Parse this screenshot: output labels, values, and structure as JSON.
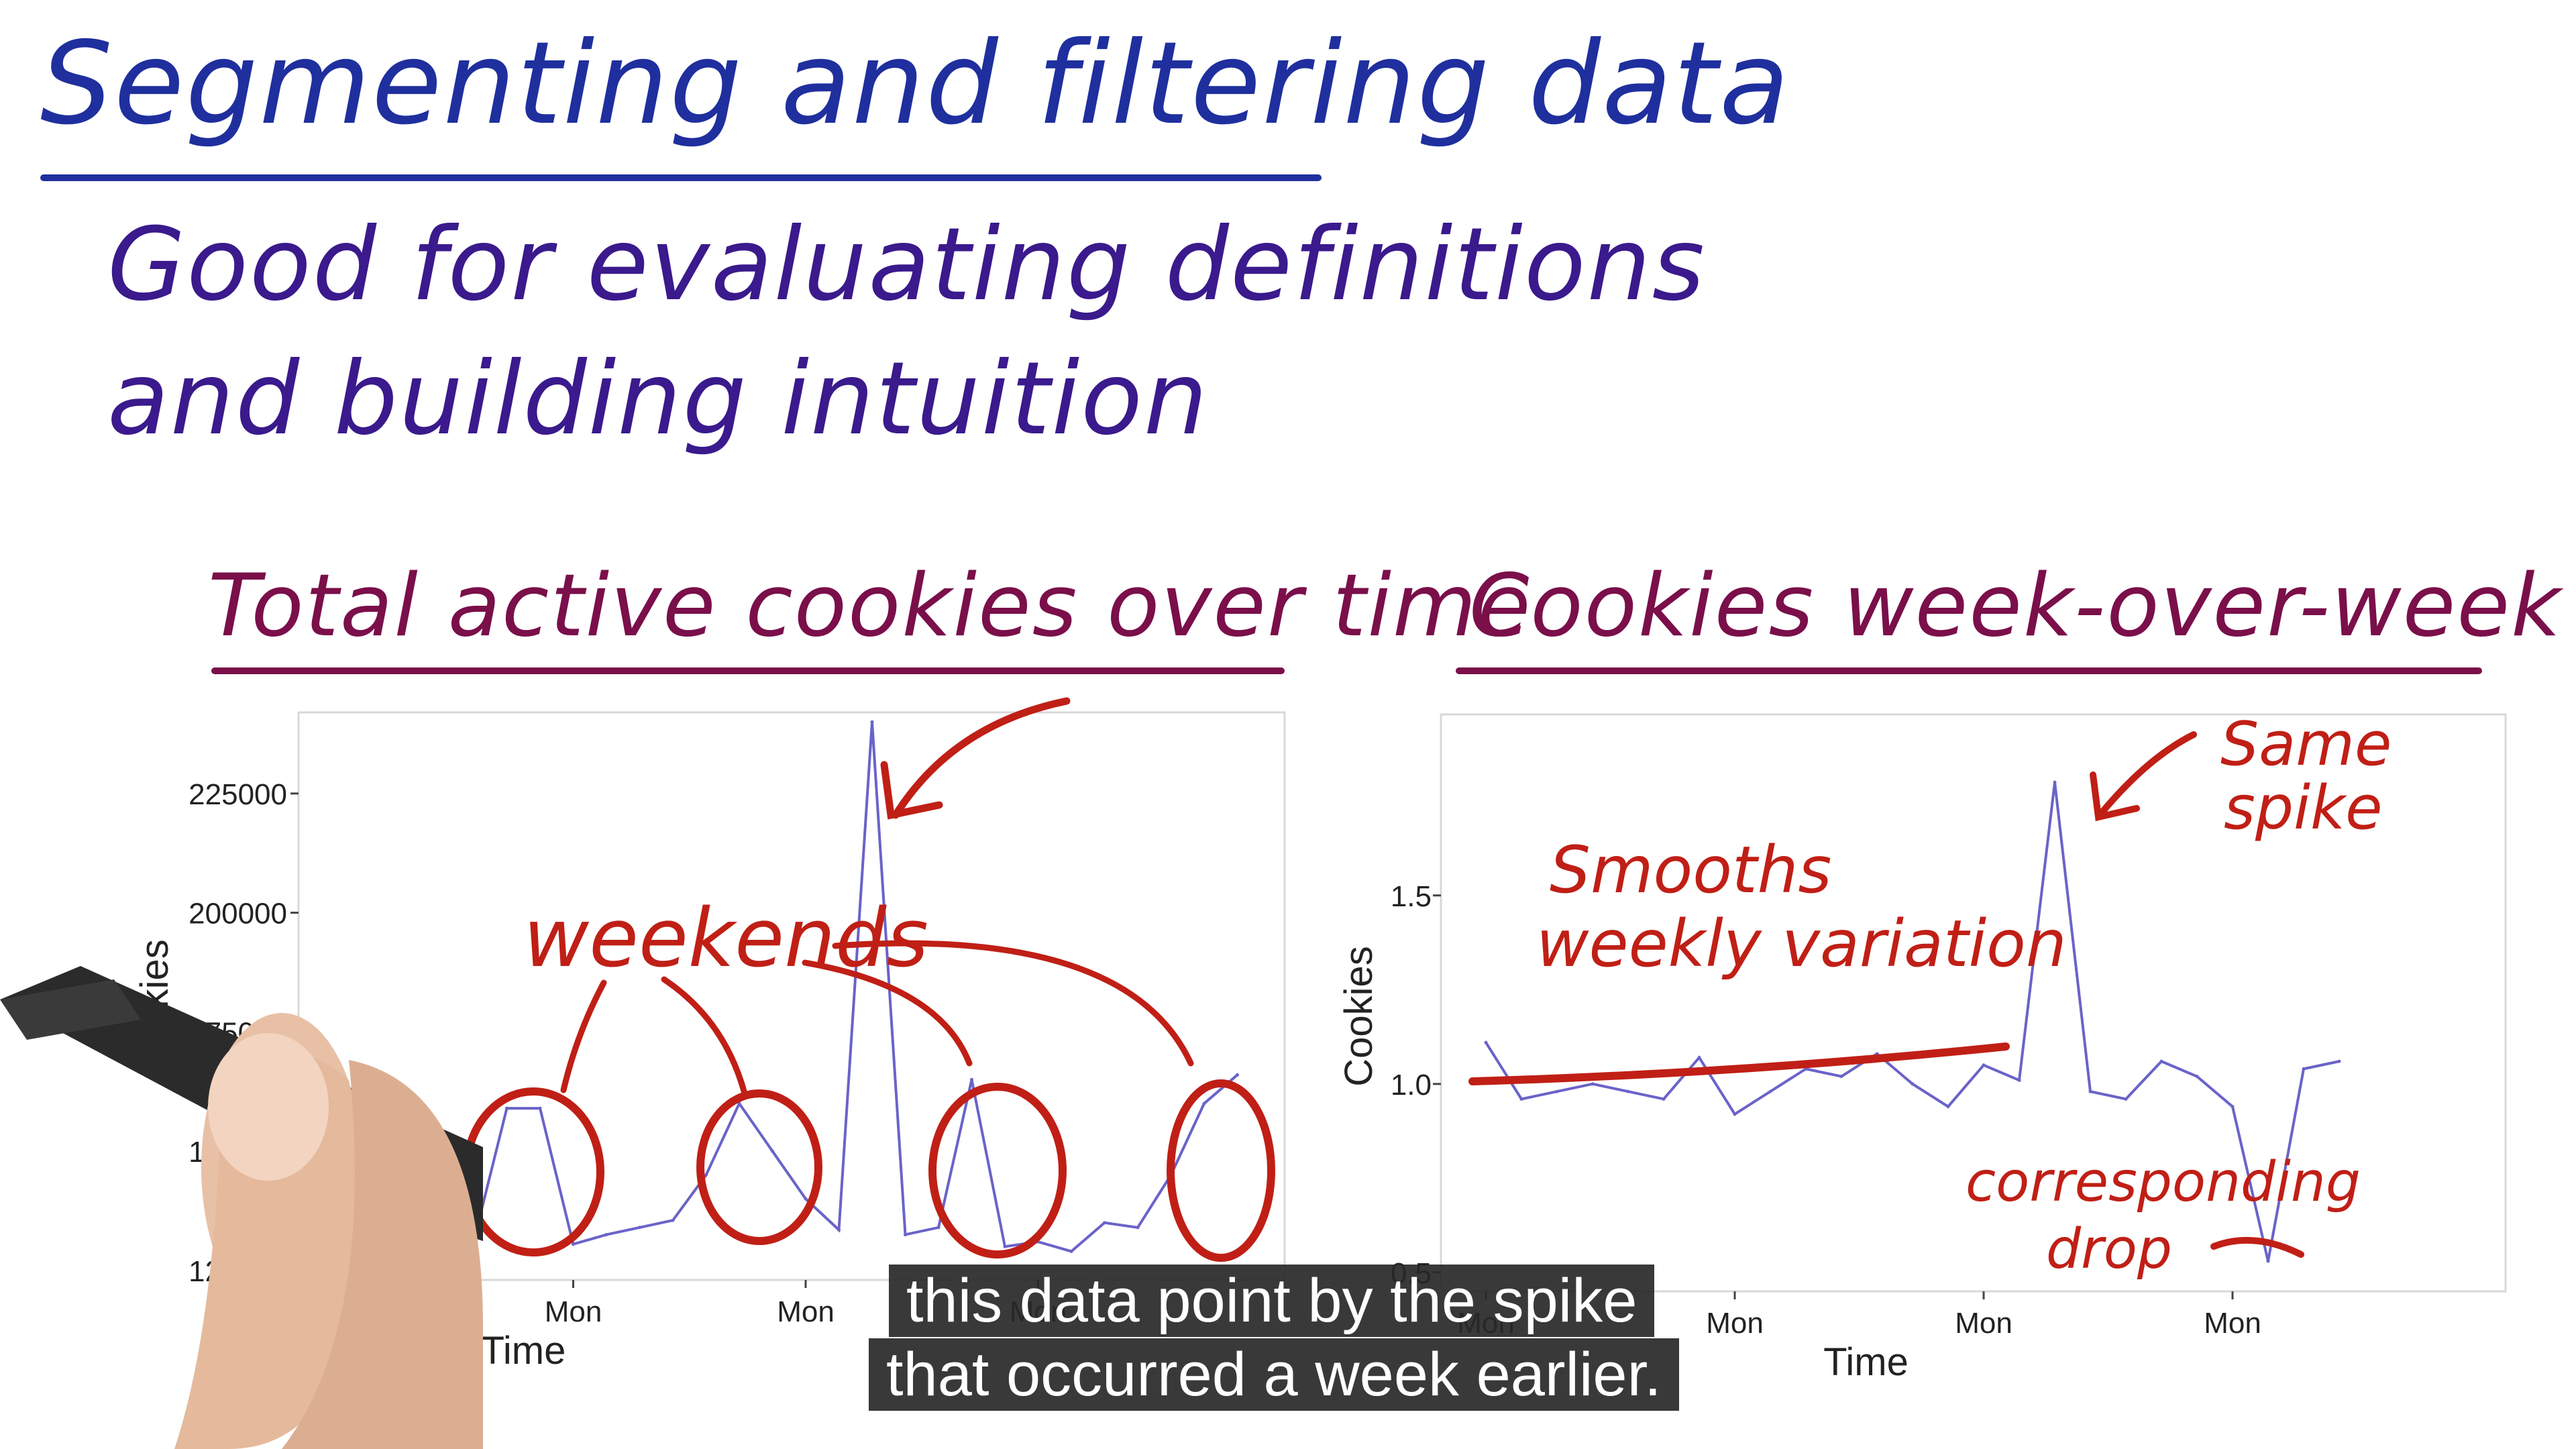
{
  "slide": {
    "title": "Segmenting and filtering data",
    "subtitle_line1": "Good for evaluating definitions",
    "subtitle_line2": "and building intuition"
  },
  "captions": {
    "line1": "this data point by the spike",
    "line2": "that occurred a week earlier."
  },
  "colors": {
    "title": "#1f2f9e",
    "subtitle": "#3a1a8c",
    "chart_title": "#7a0f4a",
    "annotation": "#c01f16",
    "series": "#6a63c9"
  },
  "chart_data": [
    {
      "type": "line",
      "title": "Total active cookies over time",
      "xlabel": "Time",
      "ylabel": "Cookies",
      "x_ticks": [
        "Mon",
        "Mon",
        "Mon",
        "Mon"
      ],
      "x_tick_index": [
        0,
        7,
        14,
        21
      ],
      "y_ticks": [
        125000,
        150000,
        175000,
        200000,
        225000
      ],
      "ylim": [
        123000,
        242000
      ],
      "grid": false,
      "series": [
        {
          "values": [
            141500,
            134500,
            128500,
            131500,
            131000,
            159000,
            159000,
            130500,
            132500,
            134000,
            135500,
            145000,
            160000,
            150000,
            140000,
            133500,
            240000,
            132500,
            134000,
            165000,
            130000,
            131000,
            129000,
            135000,
            134000,
            145000,
            160000,
            166000
          ]
        }
      ],
      "annotations": {
        "weekends": "weekends"
      }
    },
    {
      "type": "line",
      "title": "Cookies week-over-week",
      "xlabel": "Time",
      "ylabel": "Cookies",
      "x_ticks": [
        "Mon",
        "Mon",
        "Mon",
        "Mon"
      ],
      "x_tick_index": [
        0,
        7,
        14,
        21
      ],
      "y_ticks": [
        0.5,
        1.0,
        1.5
      ],
      "ylim": [
        0.45,
        1.98
      ],
      "grid": false,
      "series": [
        {
          "values": [
            1.11,
            0.96,
            0.98,
            1.0,
            0.98,
            0.96,
            1.07,
            0.92,
            0.98,
            1.04,
            1.02,
            1.08,
            1.0,
            0.94,
            1.05,
            1.01,
            1.8,
            0.98,
            0.96,
            1.06,
            1.02,
            0.94,
            0.53,
            1.04,
            1.06
          ]
        }
      ],
      "annotations": {
        "smooths": "Smooths",
        "weekly_variation": "weekly variation",
        "same_spike": "Same spike",
        "corresponding_drop": "corresponding drop"
      }
    }
  ]
}
